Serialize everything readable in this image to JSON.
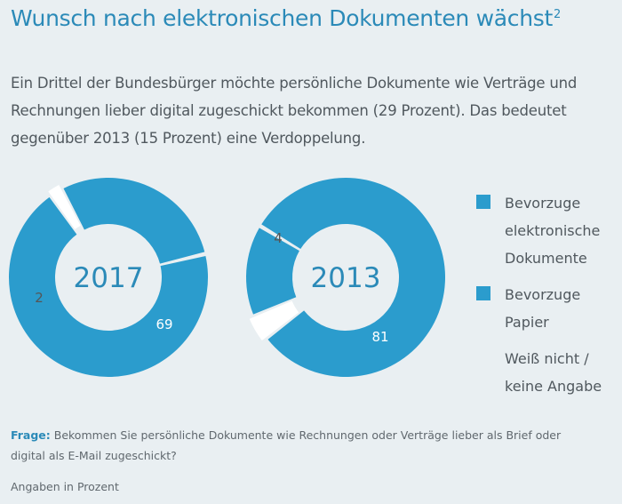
{
  "title": "Wunsch nach elektronischen Dokumenten wächst",
  "title_footnote": "2",
  "intro": "Ein Drittel der Bundesbürger möchte persönliche Dokumente wie Verträge und Rechnungen lieber digital zugeschickt bekommen (29 Prozent). Das bedeutet gegenüber 2013 (15 Prozent) eine Verdoppelung.",
  "chart_data": {
    "type": "pie",
    "donut": true,
    "legend_position": "right",
    "categories": [
      "Bevorzuge elektronische Dokumente",
      "Bevorzuge Papier",
      "Weiß nicht / keine Angabe"
    ],
    "colors": [
      "#2b9ccd",
      "#2b9ccd",
      "#ffffff"
    ],
    "charts": [
      {
        "name": "2017",
        "values": [
          29,
          69,
          2
        ]
      },
      {
        "name": "2013",
        "values": [
          15,
          81,
          4
        ]
      }
    ]
  },
  "legend": [
    {
      "label": "Bevorzuge elektronische Dokumente",
      "color": "#2b9ccd"
    },
    {
      "label": "Bevorzuge Papier",
      "color": "#2b9ccd"
    },
    {
      "label": "Weiß nicht / keine Angabe",
      "color": "none"
    }
  ],
  "footer": {
    "question_label": "Frage:",
    "question_text": "Bekommen Sie persönliche Dokumente wie Rechnungen oder Verträge lieber als Brief oder digital als E-Mail zugeschickt?",
    "unit_note": "Angaben in Prozent"
  }
}
